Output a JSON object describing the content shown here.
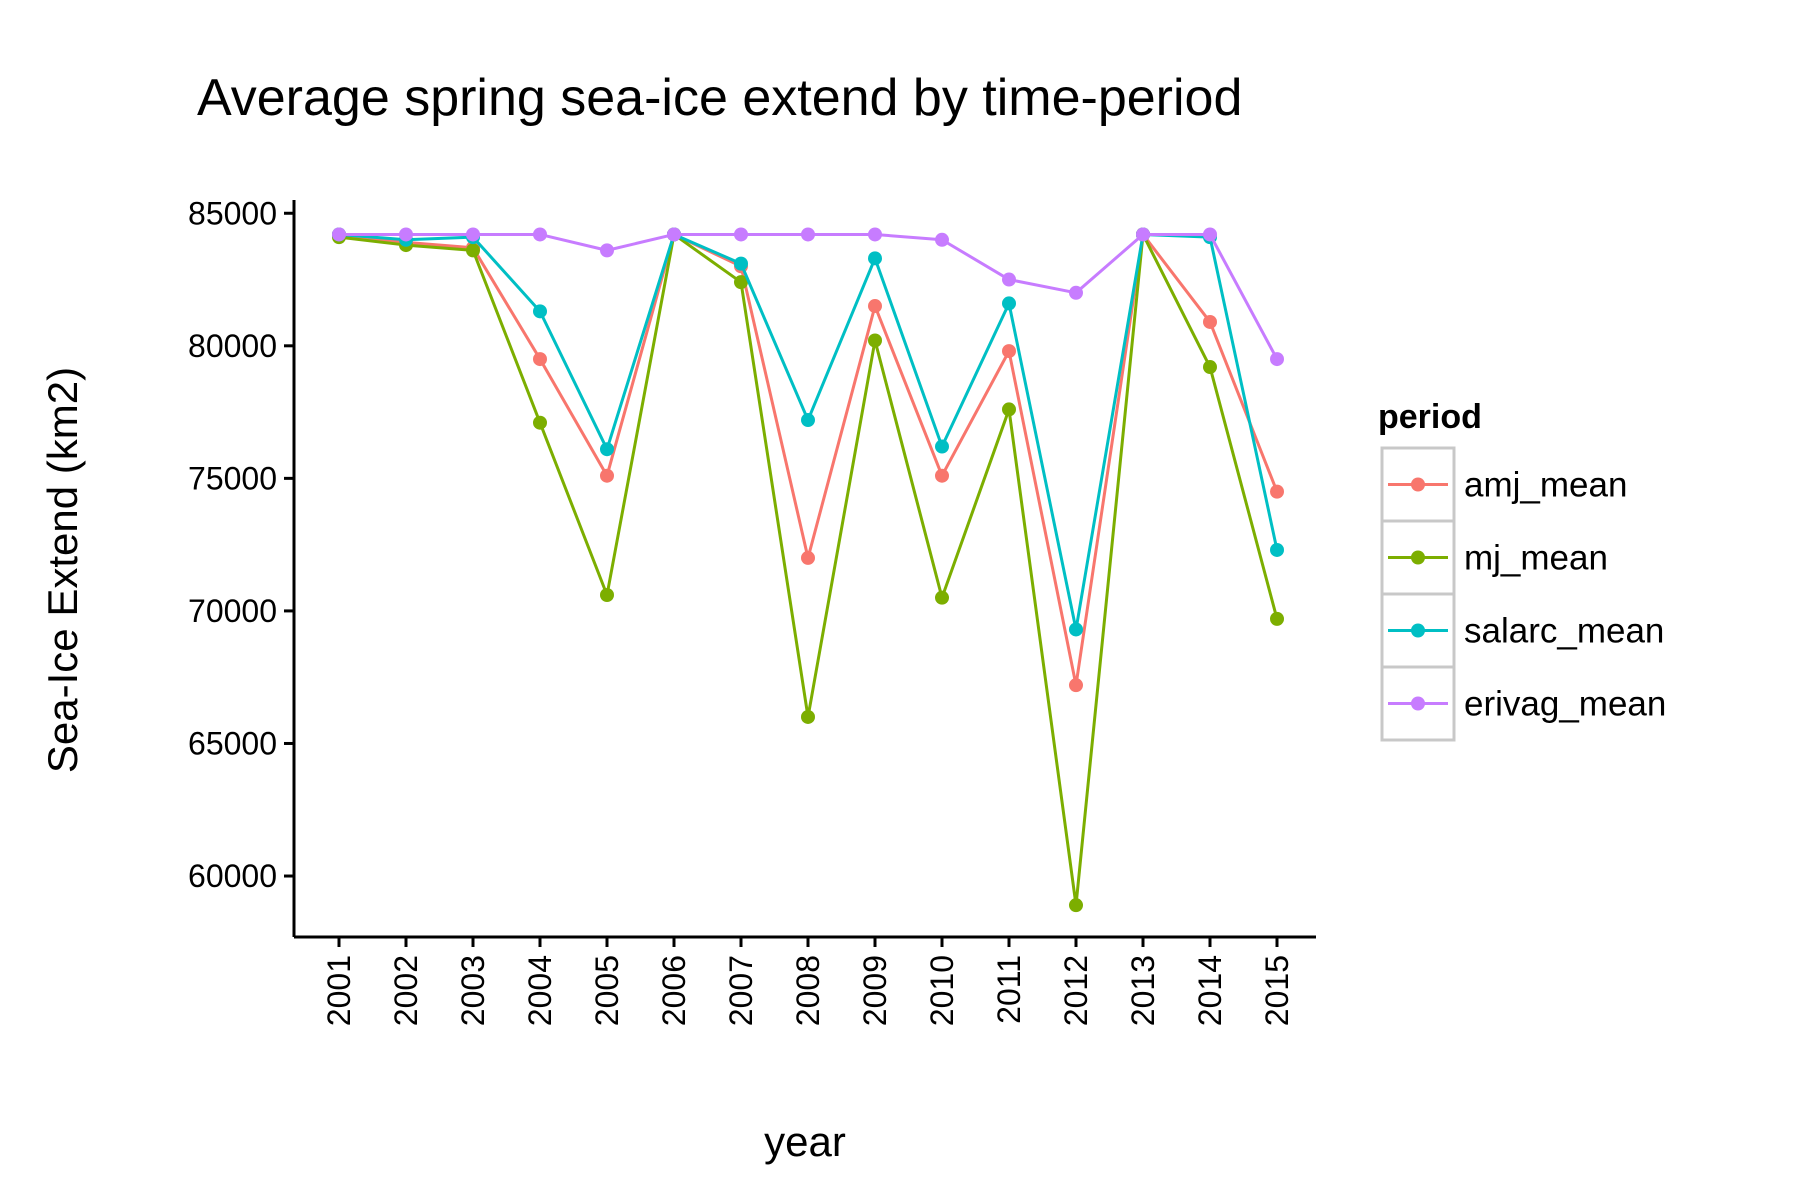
{
  "chart_data": {
    "type": "line",
    "title": "Average spring sea-ice extend by time-period",
    "xlabel": "year",
    "ylabel": "Sea-Ice Extend (km2)",
    "x": [
      "2001",
      "2002",
      "2003",
      "2004",
      "2005",
      "2006",
      "2007",
      "2008",
      "2009",
      "2010",
      "2011",
      "2012",
      "2013",
      "2014",
      "2015"
    ],
    "ylim": [
      57700,
      85500
    ],
    "yticks": [
      60000,
      65000,
      70000,
      75000,
      80000,
      85000
    ],
    "grid": false,
    "legend": {
      "title": "period",
      "position": "right"
    },
    "series": [
      {
        "name": "amj_mean",
        "color": "#f8766d",
        "values": [
          84200,
          83900,
          83700,
          79500,
          75100,
          84200,
          83000,
          72000,
          81500,
          75100,
          79800,
          67200,
          84200,
          80900,
          74500
        ]
      },
      {
        "name": "mj_mean",
        "color": "#7cae00",
        "values": [
          84100,
          83800,
          83600,
          77100,
          70600,
          84200,
          82400,
          66000,
          80200,
          70500,
          77600,
          58900,
          84200,
          79200,
          69700
        ]
      },
      {
        "name": "salarc_mean",
        "color": "#00bfc4",
        "values": [
          84200,
          84000,
          84100,
          81300,
          76100,
          84200,
          83100,
          77200,
          83300,
          76200,
          81600,
          69300,
          84200,
          84100,
          72300
        ]
      },
      {
        "name": "erivag_mean",
        "color": "#c77cff",
        "values": [
          84200,
          84200,
          84200,
          84200,
          83600,
          84200,
          84200,
          84200,
          84200,
          84000,
          82500,
          82000,
          84200,
          84200,
          79500
        ]
      }
    ]
  }
}
